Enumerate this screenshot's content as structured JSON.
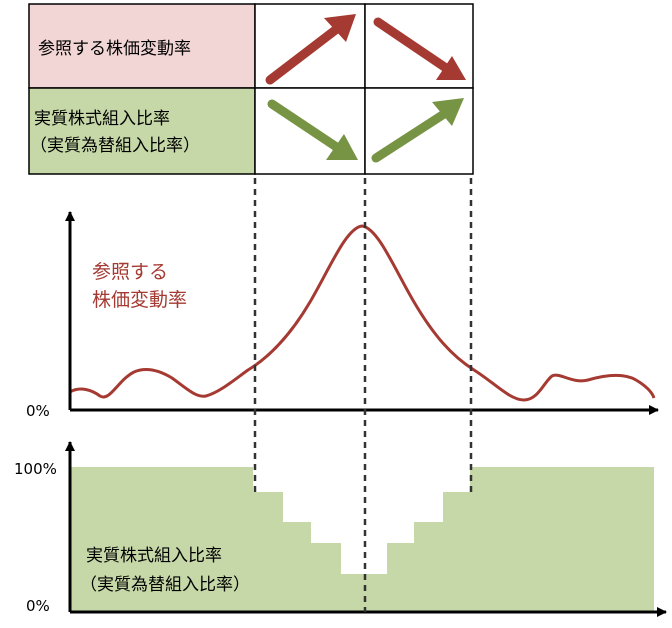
{
  "table": {
    "row1_label": "参照する株価変動率",
    "row2_label_line1": "実質株式組入比率",
    "row2_label_line2": "（実質為替組入比率）"
  },
  "top_chart": {
    "label_line1": "参照する",
    "label_line2": "株価変動率",
    "y_zero_label": "0%"
  },
  "bottom_chart": {
    "y_top_label": "100%",
    "y_zero_label": "0%",
    "label_line1": "実質株式組入比率",
    "label_line2": "（実質為替組入比率）"
  },
  "colors": {
    "pink": "#f2d6d6",
    "green": "#c6d8a7",
    "red_arrow": "#a53a32",
    "green_arrow": "#769443",
    "curve": "#a53a32",
    "text_red": "#a53a32"
  },
  "arrows": {
    "row1": [
      "up-right-arrow",
      "down-right-arrow"
    ],
    "row2": [
      "down-right-arrow",
      "up-right-arrow"
    ]
  }
}
